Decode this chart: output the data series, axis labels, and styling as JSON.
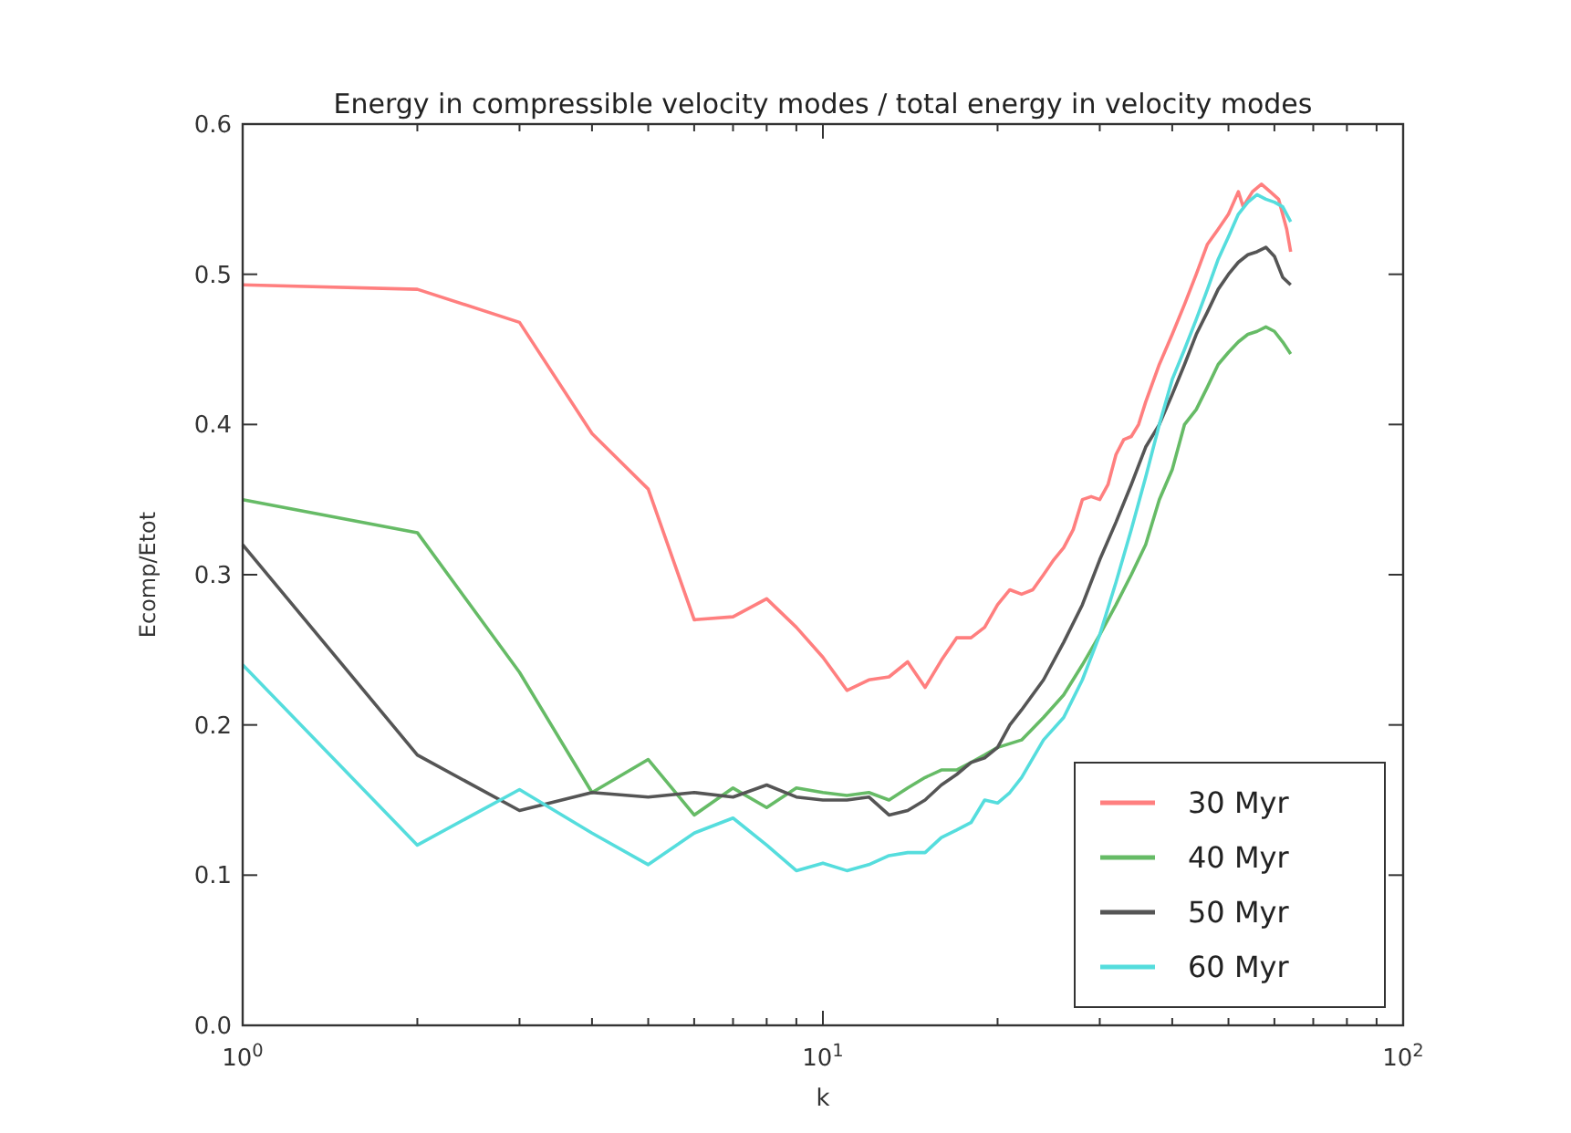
{
  "chart_data": {
    "type": "line",
    "title": "Energy in compressible velocity modes / total energy in velocity modes",
    "xlabel": "k",
    "ylabel": "Ecomp/Etot",
    "log": "x",
    "xlim": [
      1,
      100
    ],
    "xticks": [
      {
        "value": 1,
        "label": "10$^{0}$"
      },
      {
        "value": 10,
        "label": "10$^{1}$"
      },
      {
        "value": 100,
        "label": "10$^{2}$"
      }
    ],
    "ylim": [
      0,
      0.6
    ],
    "yticks": [
      {
        "value": 0,
        "label": "0.0"
      },
      {
        "value": 0.1,
        "label": "0.1"
      },
      {
        "value": 0.2,
        "label": "0.2"
      },
      {
        "value": 0.3,
        "label": "0.3"
      },
      {
        "value": 0.4,
        "label": "0.4"
      },
      {
        "value": 0.5,
        "label": "0.5"
      },
      {
        "value": 0.6,
        "label": "0.6"
      }
    ],
    "grid": false,
    "legend": "bottom right",
    "marker": "none",
    "line_style": "solid",
    "series": [
      {
        "name": "30 Myr",
        "color": "#ff7f7f",
        "x": [
          1,
          2,
          3,
          4,
          5,
          6,
          7,
          8,
          9,
          10,
          11,
          12,
          13,
          14,
          15,
          16,
          17,
          18,
          19,
          20,
          21,
          22,
          23,
          24,
          25,
          26,
          27,
          28,
          29,
          30,
          31,
          32,
          33,
          34,
          35,
          36,
          38,
          40,
          42,
          44,
          46,
          48,
          50,
          52,
          53,
          55,
          57,
          59,
          61,
          63,
          64
        ],
        "values": [
          0.493,
          0.49,
          0.468,
          0.394,
          0.357,
          0.27,
          0.272,
          0.284,
          0.265,
          0.245,
          0.223,
          0.23,
          0.232,
          0.242,
          0.225,
          0.243,
          0.258,
          0.258,
          0.265,
          0.28,
          0.29,
          0.287,
          0.29,
          0.3,
          0.31,
          0.318,
          0.33,
          0.35,
          0.352,
          0.35,
          0.36,
          0.38,
          0.39,
          0.392,
          0.4,
          0.415,
          0.44,
          0.46,
          0.48,
          0.5,
          0.52,
          0.53,
          0.54,
          0.555,
          0.545,
          0.555,
          0.56,
          0.555,
          0.55,
          0.53,
          0.515
        ]
      },
      {
        "name": "40 Myr",
        "color": "#66bb66",
        "x": [
          1,
          2,
          3,
          4,
          5,
          6,
          7,
          8,
          9,
          10,
          11,
          12,
          13,
          14,
          15,
          16,
          17,
          18,
          19,
          20,
          22,
          24,
          26,
          28,
          30,
          32,
          34,
          36,
          38,
          40,
          42,
          44,
          46,
          48,
          50,
          52,
          54,
          56,
          58,
          60,
          62,
          64
        ],
        "values": [
          0.35,
          0.328,
          0.235,
          0.155,
          0.177,
          0.14,
          0.158,
          0.145,
          0.158,
          0.155,
          0.153,
          0.155,
          0.15,
          0.158,
          0.165,
          0.17,
          0.17,
          0.175,
          0.18,
          0.185,
          0.19,
          0.205,
          0.22,
          0.24,
          0.26,
          0.28,
          0.3,
          0.32,
          0.35,
          0.37,
          0.4,
          0.41,
          0.425,
          0.44,
          0.448,
          0.455,
          0.46,
          0.462,
          0.465,
          0.462,
          0.455,
          0.447
        ]
      },
      {
        "name": "50 Myr",
        "color": "#555555",
        "x": [
          1,
          2,
          3,
          4,
          5,
          6,
          7,
          8,
          9,
          10,
          11,
          12,
          13,
          14,
          15,
          16,
          17,
          18,
          19,
          20,
          21,
          22,
          24,
          26,
          28,
          30,
          32,
          34,
          36,
          38,
          40,
          42,
          44,
          46,
          48,
          50,
          52,
          54,
          56,
          58,
          60,
          62,
          64
        ],
        "values": [
          0.32,
          0.18,
          0.143,
          0.155,
          0.152,
          0.155,
          0.152,
          0.16,
          0.152,
          0.15,
          0.15,
          0.152,
          0.14,
          0.143,
          0.15,
          0.16,
          0.167,
          0.175,
          0.178,
          0.185,
          0.2,
          0.21,
          0.23,
          0.255,
          0.28,
          0.31,
          0.335,
          0.36,
          0.385,
          0.4,
          0.42,
          0.44,
          0.46,
          0.475,
          0.49,
          0.5,
          0.508,
          0.513,
          0.515,
          0.518,
          0.512,
          0.498,
          0.493
        ]
      },
      {
        "name": "60 Myr",
        "color": "#55dddd",
        "x": [
          1,
          2,
          3,
          4,
          5,
          6,
          7,
          8,
          9,
          10,
          11,
          12,
          13,
          14,
          15,
          16,
          17,
          18,
          19,
          20,
          21,
          22,
          24,
          26,
          28,
          30,
          32,
          34,
          36,
          38,
          40,
          42,
          44,
          46,
          48,
          50,
          52,
          54,
          56,
          58,
          60,
          62,
          64
        ],
        "values": [
          0.24,
          0.12,
          0.157,
          0.128,
          0.107,
          0.128,
          0.138,
          0.12,
          0.103,
          0.108,
          0.103,
          0.107,
          0.113,
          0.115,
          0.115,
          0.125,
          0.13,
          0.135,
          0.15,
          0.148,
          0.155,
          0.165,
          0.19,
          0.205,
          0.23,
          0.26,
          0.295,
          0.33,
          0.365,
          0.4,
          0.43,
          0.45,
          0.47,
          0.49,
          0.51,
          0.525,
          0.54,
          0.548,
          0.553,
          0.55,
          0.548,
          0.545,
          0.535
        ]
      }
    ]
  }
}
